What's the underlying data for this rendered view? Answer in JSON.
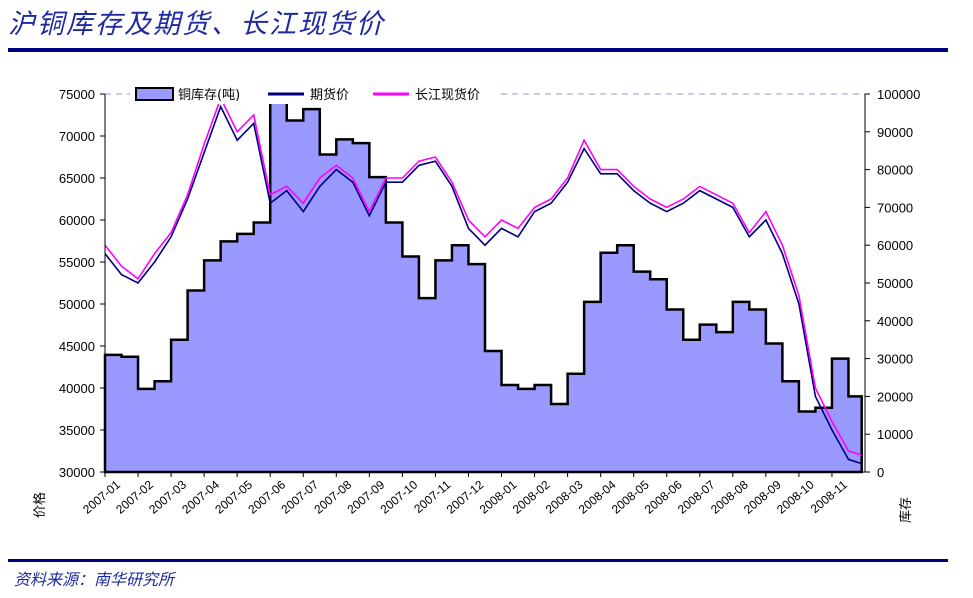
{
  "header": {
    "title": "沪铜库存及期货、长江现货价"
  },
  "footer": {
    "source": "资料来源：南华研究所"
  },
  "colors": {
    "inventory_fill": "#9999ff",
    "futures_line": "#000080",
    "spot_line": "#ff00ff",
    "title": "#1f2aa0",
    "rule": "#000080"
  },
  "chart_data": {
    "type": "area",
    "title": "",
    "xlabel": "",
    "ylabel": "价格",
    "y2label": "库存",
    "ylim": [
      30000,
      75000
    ],
    "y2lim": [
      0,
      100000
    ],
    "y_ticks": [
      "30000",
      "35000",
      "40000",
      "45000",
      "50000",
      "55000",
      "60000",
      "65000",
      "70000",
      "75000"
    ],
    "y2_ticks": [
      "0",
      "10000",
      "20000",
      "30000",
      "40000",
      "50000",
      "60000",
      "70000",
      "80000",
      "90000",
      "100000"
    ],
    "x_ticks": [
      "2007-01",
      "2007-02",
      "2007-03",
      "2007-04",
      "2007-05",
      "2007-06",
      "2007-07",
      "2007-08",
      "2007-09",
      "2007-10",
      "2007-11",
      "2007-12",
      "2008-01",
      "2008-02",
      "2008-03",
      "2008-04",
      "2008-05",
      "2008-06",
      "2008-07",
      "2008-08",
      "2008-09",
      "2008-10",
      "2008-11"
    ],
    "legend": {
      "position": "top",
      "entries": [
        "铜库存(吨)",
        "期货价",
        "长江现货价"
      ]
    },
    "grid": "horizontal dashed at top only",
    "x_months": [
      0,
      0.5,
      1,
      1.5,
      2,
      2.5,
      3,
      3.5,
      4,
      4.5,
      5,
      5.5,
      6,
      6.5,
      7,
      7.5,
      8,
      8.5,
      9,
      9.5,
      10,
      10.5,
      11,
      11.5,
      12,
      12.5,
      13,
      13.5,
      14,
      14.5,
      15,
      15.5,
      16,
      16.5,
      17,
      17.5,
      18,
      18.5,
      19,
      19.5,
      20,
      20.5,
      21,
      21.5,
      22,
      22.5,
      22.9
    ],
    "series": [
      {
        "name": "铜库存(吨)",
        "axis": "right",
        "kind": "area",
        "values": [
          31000,
          30500,
          22000,
          24000,
          35000,
          48000,
          56000,
          61000,
          63000,
          66000,
          100000,
          93000,
          96000,
          84000,
          88000,
          87000,
          78000,
          66000,
          57000,
          46000,
          56000,
          60000,
          55000,
          32000,
          23000,
          22000,
          23000,
          18000,
          26000,
          45000,
          58000,
          60000,
          53000,
          51000,
          43000,
          35000,
          39000,
          37000,
          45000,
          43000,
          34000,
          24000,
          16000,
          17000,
          30000,
          20000,
          18000
        ]
      },
      {
        "name": "期货价",
        "axis": "left",
        "kind": "line",
        "values": [
          56000,
          53500,
          52500,
          55000,
          58000,
          62500,
          68000,
          73500,
          69500,
          71500,
          62000,
          63500,
          61000,
          64000,
          66000,
          64500,
          60500,
          64500,
          64500,
          66500,
          67000,
          64000,
          59000,
          57000,
          59000,
          58000,
          61000,
          62000,
          64500,
          68500,
          65500,
          65500,
          63500,
          62000,
          61000,
          62000,
          63500,
          62500,
          61500,
          58000,
          60000,
          56000,
          50000,
          39000,
          35000,
          31500,
          31000
        ]
      },
      {
        "name": "长江现货价",
        "axis": "left",
        "kind": "line",
        "values": [
          57000,
          54500,
          53000,
          56000,
          58500,
          63000,
          69000,
          74500,
          70500,
          72500,
          63000,
          64000,
          62000,
          65000,
          66500,
          65000,
          61000,
          65000,
          65000,
          67000,
          67500,
          64500,
          60000,
          58000,
          60000,
          59000,
          61500,
          62500,
          65000,
          69500,
          66000,
          66000,
          64000,
          62500,
          61500,
          62500,
          64000,
          63000,
          62000,
          58500,
          61000,
          57000,
          51000,
          40000,
          36000,
          32500,
          32000
        ]
      }
    ]
  }
}
